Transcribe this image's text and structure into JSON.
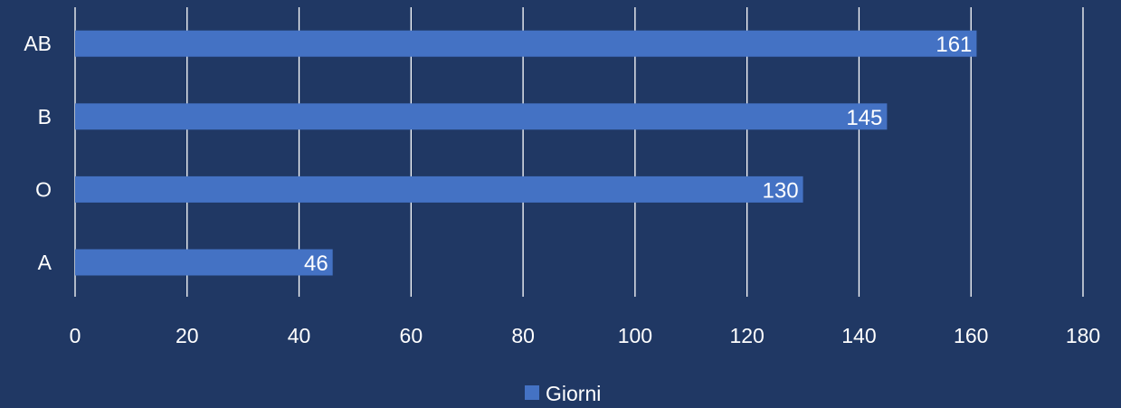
{
  "chart_data": {
    "type": "bar",
    "orientation": "horizontal",
    "categories": [
      "A",
      "O",
      "B",
      "AB"
    ],
    "series": [
      {
        "name": "Giorni",
        "values": [
          46,
          130,
          145,
          161
        ]
      }
    ],
    "xlim": [
      0,
      180
    ],
    "xticks": [
      0,
      20,
      40,
      60,
      80,
      100,
      120,
      140,
      160,
      180
    ],
    "grid": true,
    "legend_position": "bottom",
    "colors": {
      "background": "#203864",
      "bar": "#4472C4",
      "text": "#ffffff",
      "grid": "#ffffff"
    }
  }
}
